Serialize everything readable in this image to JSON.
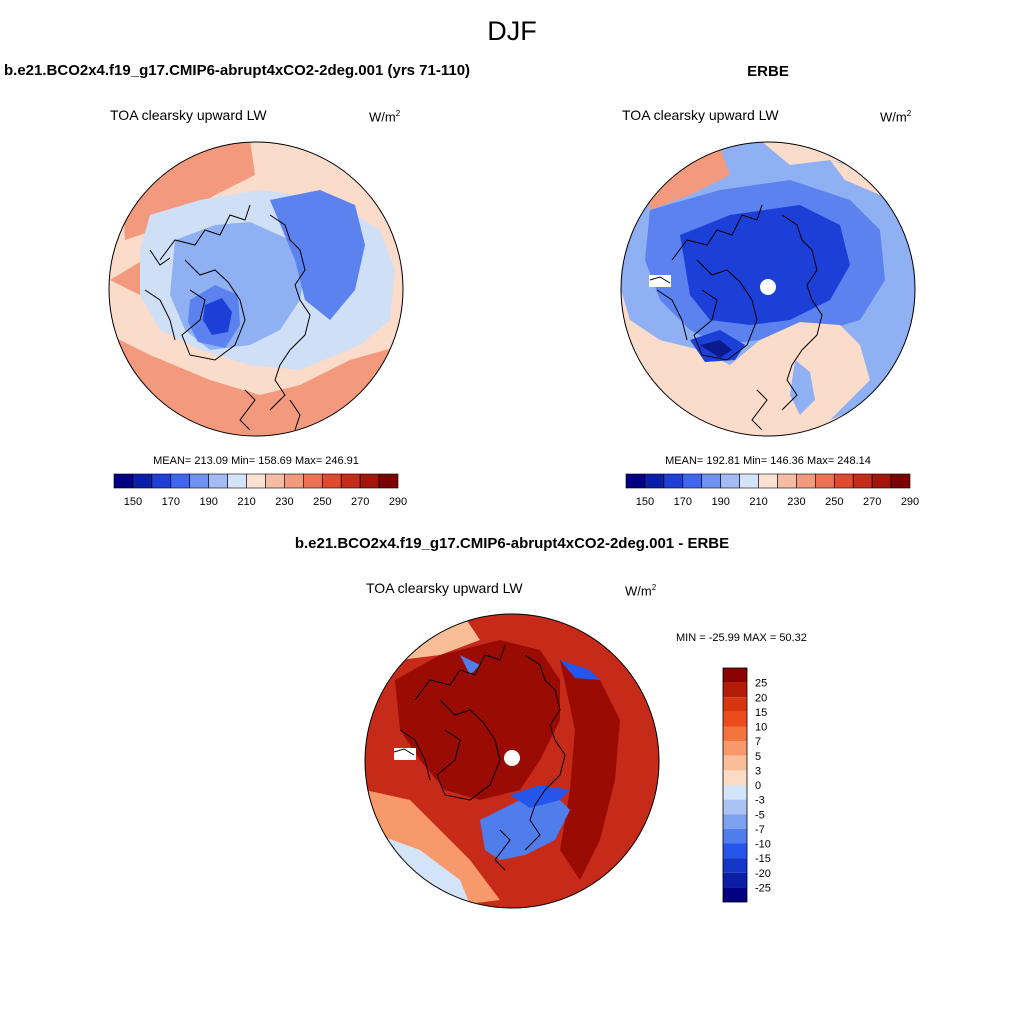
{
  "title": "DJF",
  "panels": [
    {
      "title": "b.e21.BCO2x4.f19_g17.CMIP6-abrupt4xCO2-2deg.001 (yrs 71-110)",
      "variable": "TOA clearsky upward LW",
      "units_base": "W/m",
      "units_exp": "2",
      "stats": "MEAN= 213.09  Min= 158.69  Max= 246.91"
    },
    {
      "title": "ERBE",
      "variable": "TOA clearsky upward LW",
      "units_base": "W/m",
      "units_exp": "2",
      "stats": "MEAN= 192.81  Min= 146.36  Max= 248.14"
    },
    {
      "title": "b.e21.BCO2x4.f19_g17.CMIP6-abrupt4xCO2-2deg.001 - ERBE",
      "variable": "TOA clearsky upward LW",
      "units_base": "W/m",
      "units_exp": "2",
      "stats": "MIN = -25.99 MAX =  50.32"
    }
  ],
  "colorbar_abs": {
    "tick_labels": [
      "150",
      "170",
      "190",
      "210",
      "230",
      "250",
      "270",
      "290"
    ],
    "colors": [
      "#000080",
      "#0a1fa6",
      "#1f3fd6",
      "#3f66f0",
      "#6f93f3",
      "#a3bcf5",
      "#d4e4f8",
      "#fbe2d3",
      "#f6bca6",
      "#f29a7e",
      "#ed7356",
      "#e0482f",
      "#c62a18",
      "#a1150b",
      "#7a0403"
    ]
  },
  "colorbar_diff": {
    "tick_labels": [
      "25",
      "20",
      "15",
      "10",
      "7",
      "5",
      "3",
      "0",
      "-3",
      "-5",
      "-7",
      "-10",
      "-15",
      "-20",
      "-25"
    ],
    "colors": [
      "#8b0000",
      "#b51c08",
      "#d8360f",
      "#ec4c1c",
      "#f4743e",
      "#f7996a",
      "#f9bd98",
      "#fcdcc4",
      "#d4e4f8",
      "#aac3f2",
      "#7ca1ee",
      "#4f7eec",
      "#2555ea",
      "#1436c8",
      "#0a1fa6",
      "#000080"
    ]
  },
  "map_colors": {
    "abs_warm": "#f39a7e",
    "abs_light_warm": "#fbdccb",
    "abs_pale_blue": "#cfdff6",
    "abs_mid_blue": "#8fb0f2",
    "abs_blue": "#5b82ee",
    "abs_dark_blue": "#1c3fd8",
    "diff_dark_red": "#9a0b03",
    "diff_red": "#c62a18",
    "diff_blue": "#4f7eec"
  }
}
